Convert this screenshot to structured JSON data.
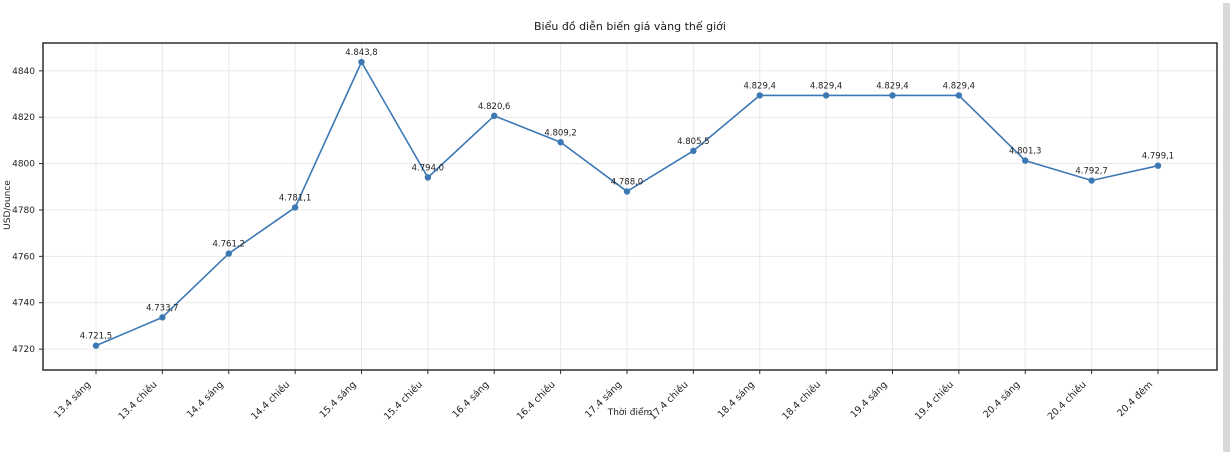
{
  "chart_data": {
    "type": "line",
    "title": "Biểu đồ diễn biến giá vàng thế giới",
    "xlabel": "Thời điểm",
    "ylabel": "USD/ounce",
    "categories": [
      "13.4 sáng",
      "13.4 chiều",
      "14.4 sáng",
      "14.4 chiều",
      "15.4 sáng",
      "15.4 chiều",
      "16.4 sáng",
      "16.4 chiều",
      "17.4 sáng",
      "17.4 chiều",
      "18.4 sáng",
      "18.4 chiều",
      "19.4 sáng",
      "19.4 chiều",
      "20.4 sáng",
      "20.4 chiều",
      "20.4 đêm"
    ],
    "values": [
      4721.5,
      4733.7,
      4761.2,
      4781.1,
      4843.8,
      4794.0,
      4820.6,
      4809.2,
      4788.0,
      4805.5,
      4829.4,
      4829.4,
      4829.4,
      4829.4,
      4801.3,
      4792.7,
      4799.1
    ],
    "point_labels": [
      "4.721,5",
      "4.733,7",
      "4.761,2",
      "4.781,1",
      "4.843,8",
      "4.794,0",
      "4.820,6",
      "4.809,2",
      "4.788,0",
      "4.805,5",
      "4.829,4",
      "4.829,4",
      "4.829,4",
      "4.829,4",
      "4.801,3",
      "4.792,7",
      "4.799,1"
    ],
    "yticks": [
      4720,
      4740,
      4760,
      4780,
      4800,
      4820,
      4840
    ],
    "ylim": [
      4711,
      4852
    ],
    "grid": true,
    "legend_position": "none",
    "line_color": "#3c78b4",
    "marker_color": "#3c78b4",
    "grid_color": "#e8e8e8",
    "spine_color": "#2e2e2e",
    "text_color": "#1f1f1f"
  }
}
